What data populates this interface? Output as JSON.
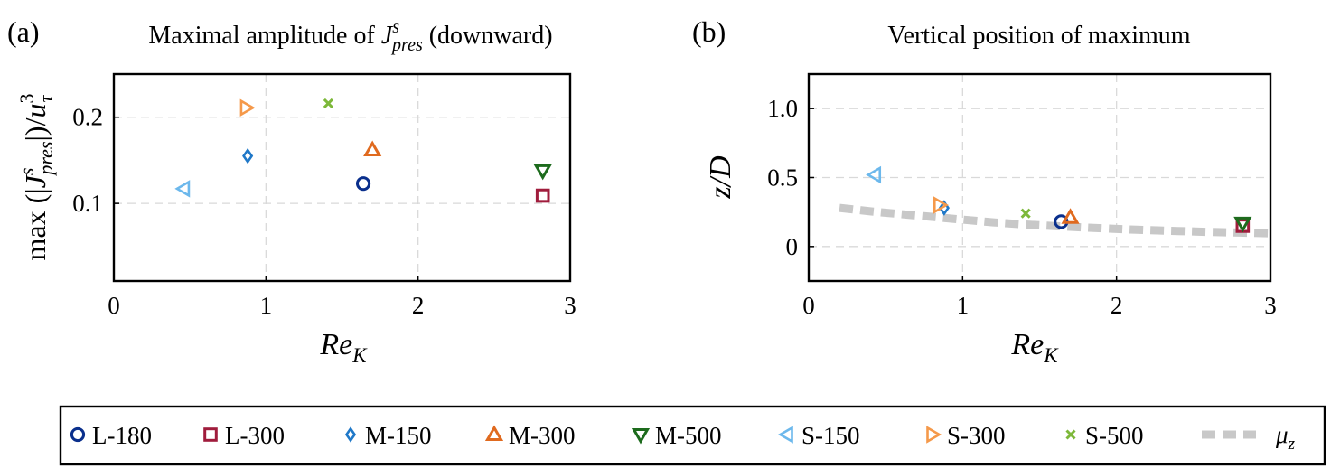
{
  "colors": {
    "L-180": "#0a2f8c",
    "L-300": "#a01c3c",
    "M-150": "#1f78c8",
    "M-300": "#e06a1f",
    "M-500": "#1d6b1d",
    "S-150": "#6cb8ec",
    "S-300": "#f5994a",
    "S-500": "#7db83a",
    "mu_z": "#c8c8c8"
  },
  "markers": {
    "L-180": "circle",
    "L-300": "square",
    "M-150": "diamond",
    "M-300": "triangle-up",
    "M-500": "triangle-down",
    "S-150": "triangle-left",
    "S-300": "triangle-right",
    "S-500": "cross"
  },
  "chart_data": [
    {
      "panel_label": "(a)",
      "type": "scatter",
      "title_main": "Maximal amplitude of ",
      "title_sym": "J",
      "title_sup": "s",
      "title_sub": "pres",
      "title_rest": " (downward)",
      "xlabel_main": "Re",
      "xlabel_sub": "K",
      "ylabel": {
        "pre": "max (|",
        "sym": "J",
        "sup": "s",
        "sub": "pres",
        "mid": "|)/",
        "sym2": "u",
        "sup2": "3",
        "sub2": "τ"
      },
      "xlim": [
        0,
        3
      ],
      "ylim": [
        0.01,
        0.25
      ],
      "xticks": [
        0,
        1,
        2,
        3
      ],
      "xtick_labels": [
        "0",
        "1",
        "2",
        "3"
      ],
      "yticks": [
        0.1,
        0.2
      ],
      "ytick_labels": [
        "0.1",
        "0.2"
      ],
      "grid": true,
      "series": [
        {
          "name": "L-180",
          "x": [
            1.64
          ],
          "y": [
            0.123
          ]
        },
        {
          "name": "L-300",
          "x": [
            2.82
          ],
          "y": [
            0.109
          ]
        },
        {
          "name": "M-150",
          "x": [
            0.88
          ],
          "y": [
            0.155
          ]
        },
        {
          "name": "M-300",
          "x": [
            1.7
          ],
          "y": [
            0.162
          ]
        },
        {
          "name": "M-500",
          "x": [
            2.82
          ],
          "y": [
            0.138
          ]
        },
        {
          "name": "S-150",
          "x": [
            0.46
          ],
          "y": [
            0.117
          ]
        },
        {
          "name": "S-300",
          "x": [
            0.87
          ],
          "y": [
            0.211
          ]
        },
        {
          "name": "S-500",
          "x": [
            1.41
          ],
          "y": [
            0.216
          ]
        }
      ]
    },
    {
      "panel_label": "(b)",
      "type": "scatter",
      "title": "Vertical position of maximum",
      "xlabel_main": "Re",
      "xlabel_sub": "K",
      "ylabel": "z/D",
      "xlim": [
        0,
        3
      ],
      "ylim": [
        -0.25,
        1.25
      ],
      "xticks": [
        0,
        1,
        2,
        3
      ],
      "xtick_labels": [
        "0",
        "1",
        "2",
        "3"
      ],
      "yticks": [
        0,
        0.5,
        1.0
      ],
      "ytick_labels": [
        "0",
        "0.5",
        "1.0"
      ],
      "grid": true,
      "series": [
        {
          "name": "L-180",
          "x": [
            1.64
          ],
          "y": [
            0.18
          ]
        },
        {
          "name": "L-300",
          "x": [
            2.82
          ],
          "y": [
            0.15
          ]
        },
        {
          "name": "M-150",
          "x": [
            0.88
          ],
          "y": [
            0.28
          ]
        },
        {
          "name": "M-300",
          "x": [
            1.7
          ],
          "y": [
            0.21
          ]
        },
        {
          "name": "M-500",
          "x": [
            2.82
          ],
          "y": [
            0.17
          ]
        },
        {
          "name": "S-150",
          "x": [
            0.43
          ],
          "y": [
            0.52
          ]
        },
        {
          "name": "S-300",
          "x": [
            0.85
          ],
          "y": [
            0.3
          ]
        },
        {
          "name": "S-500",
          "x": [
            1.41
          ],
          "y": [
            0.24
          ]
        }
      ],
      "curve": {
        "name": "μz",
        "x": [
          0.2,
          0.4,
          0.6,
          0.8,
          1.0,
          1.2,
          1.4,
          1.6,
          1.8,
          2.0,
          2.2,
          2.4,
          2.6,
          2.8,
          3.0
        ],
        "y": [
          0.28,
          0.255,
          0.235,
          0.215,
          0.195,
          0.175,
          0.16,
          0.148,
          0.137,
          0.127,
          0.119,
          0.112,
          0.106,
          0.101,
          0.096
        ]
      }
    }
  ],
  "legend": {
    "placement": "bottom",
    "items": [
      {
        "key": "L-180",
        "label": "L-180"
      },
      {
        "key": "L-300",
        "label": "L-300"
      },
      {
        "key": "M-150",
        "label": "M-150"
      },
      {
        "key": "M-300",
        "label": "M-300"
      },
      {
        "key": "M-500",
        "label": "M-500"
      },
      {
        "key": "S-150",
        "label": "S-150"
      },
      {
        "key": "S-300",
        "label": "S-300"
      },
      {
        "key": "S-500",
        "label": "S-500"
      },
      {
        "key": "mu_z",
        "label_main": "μ",
        "label_sub": "z"
      }
    ]
  }
}
